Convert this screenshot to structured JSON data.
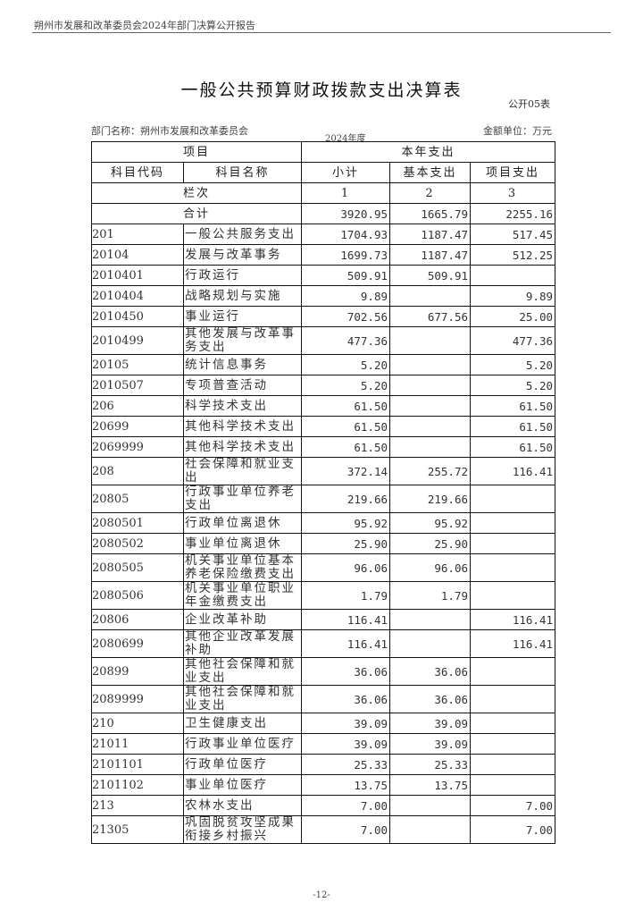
{
  "header": {
    "running_title": "朔州市发展和改革委员会2024年部门决算公开报告"
  },
  "title": "一般公共预算财政拨款支出决算表",
  "form_no": "公开05表",
  "dept": "部门名称：朔州市发展和改革委员会",
  "year": "2024年度",
  "unit": "金额单位：万元",
  "table": {
    "h_item": "项目",
    "h_expense": "本年支出",
    "h_code": "科目代码",
    "h_name": "科目名称",
    "h_sub": "小计",
    "h_basic": "基本支出",
    "h_project": "项目支出",
    "col_label": "栏次",
    "col1": "1",
    "col2": "2",
    "col3": "3",
    "total_label": "合计",
    "total": [
      "3920.95",
      "1665.79",
      "2255.16"
    ],
    "rows": [
      [
        "201",
        "一般公共服务支出",
        "1704.93",
        "1187.47",
        "517.45"
      ],
      [
        "20104",
        "发展与改革事务",
        "1699.73",
        "1187.47",
        "512.25"
      ],
      [
        "2010401",
        "行政运行",
        "509.91",
        "509.91",
        ""
      ],
      [
        "2010404",
        "战略规划与实施",
        "9.89",
        "",
        "9.89"
      ],
      [
        "2010450",
        "事业运行",
        "702.56",
        "677.56",
        "25.00"
      ],
      [
        "2010499",
        "其他发展与改革事务支出",
        "477.36",
        "",
        "477.36"
      ],
      [
        "20105",
        "统计信息事务",
        "5.20",
        "",
        "5.20"
      ],
      [
        "2010507",
        "专项普查活动",
        "5.20",
        "",
        "5.20"
      ],
      [
        "206",
        "科学技术支出",
        "61.50",
        "",
        "61.50"
      ],
      [
        "20699",
        "其他科学技术支出",
        "61.50",
        "",
        "61.50"
      ],
      [
        "2069999",
        "其他科学技术支出",
        "61.50",
        "",
        "61.50"
      ],
      [
        "208",
        "社会保障和就业支出",
        "372.14",
        "255.72",
        "116.41"
      ],
      [
        "20805",
        "行政事业单位养老支出",
        "219.66",
        "219.66",
        ""
      ],
      [
        "2080501",
        "行政单位离退休",
        "95.92",
        "95.92",
        ""
      ],
      [
        "2080502",
        "事业单位离退休",
        "25.90",
        "25.90",
        ""
      ],
      [
        "2080505",
        "机关事业单位基本养老保险缴费支出",
        "96.06",
        "96.06",
        ""
      ],
      [
        "2080506",
        "机关事业单位职业年金缴费支出",
        "1.79",
        "1.79",
        ""
      ],
      [
        "20806",
        "企业改革补助",
        "116.41",
        "",
        "116.41"
      ],
      [
        "2080699",
        "其他企业改革发展补助",
        "116.41",
        "",
        "116.41"
      ],
      [
        "20899",
        "其他社会保障和就业支出",
        "36.06",
        "36.06",
        ""
      ],
      [
        "2089999",
        "其他社会保障和就业支出",
        "36.06",
        "36.06",
        ""
      ],
      [
        "210",
        "卫生健康支出",
        "39.09",
        "39.09",
        ""
      ],
      [
        "21011",
        "行政事业单位医疗",
        "39.09",
        "39.09",
        ""
      ],
      [
        "2101101",
        "行政单位医疗",
        "25.33",
        "25.33",
        ""
      ],
      [
        "2101102",
        "事业单位医疗",
        "13.75",
        "13.75",
        ""
      ],
      [
        "213",
        "农林水支出",
        "7.00",
        "",
        "7.00"
      ],
      [
        "21305",
        "巩固脱贫攻坚成果衔接乡村振兴",
        "7.00",
        "",
        "7.00"
      ]
    ]
  },
  "footer": {
    "page": "-12-"
  }
}
